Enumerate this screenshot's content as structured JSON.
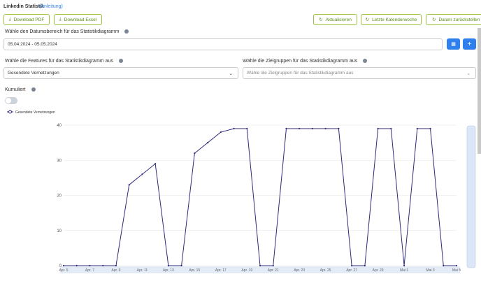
{
  "header": {
    "title": "Linkedin Statistik",
    "link": "(Anleitung)"
  },
  "buttons": {
    "pdf": "Download PDF",
    "excel": "Download Excel",
    "refresh": "Aktualisieren",
    "lastweek": "Letzte Kalenderwoche",
    "reset": "Datum zurückstellen"
  },
  "date": {
    "label": "Wähle den Datumsbereich für das Statistikdiagramm",
    "value": "05.04.2024 - 05.05.2024"
  },
  "features": {
    "label": "Wähle die Features für das Statistikdiagramm aus",
    "value": "Gesendete Vernetzungen"
  },
  "groups": {
    "label": "Wähle die Zielgruppen für das Statistikdiagramm aus",
    "placeholder": "Wähle die Zielgruppen für das Statistikdiagramm aus"
  },
  "cumulative": {
    "label": "Kumuliert"
  },
  "chart_data": {
    "type": "line",
    "categories": [
      "Apr. 5",
      null,
      "Apr. 7",
      null,
      "Apr. 9",
      null,
      "Apr. 11",
      null,
      "Apr. 13",
      null,
      "Apr. 15",
      null,
      "Apr. 17",
      null,
      "Apr. 19",
      null,
      "Apr. 21",
      null,
      "Apr. 23",
      null,
      "Apr. 25",
      null,
      "Apr. 27",
      null,
      "Apr. 29",
      null,
      "Mai 1",
      null,
      "Mai 3",
      null,
      "Mai 5"
    ],
    "series": [
      {
        "name": "Gesendete Vernetzungen",
        "color": "#2e2a7a",
        "values": [
          0,
          0,
          0,
          0,
          0,
          23,
          26,
          29,
          0,
          0,
          32,
          35,
          38,
          39,
          39,
          0,
          0,
          39,
          39,
          39,
          39,
          39,
          0,
          0,
          39,
          39,
          0,
          39,
          39,
          0,
          0
        ]
      }
    ],
    "ylim": [
      0,
      40
    ],
    "yticks": [
      0,
      10,
      20,
      30,
      40
    ],
    "grid": true,
    "legend": "top-left"
  }
}
